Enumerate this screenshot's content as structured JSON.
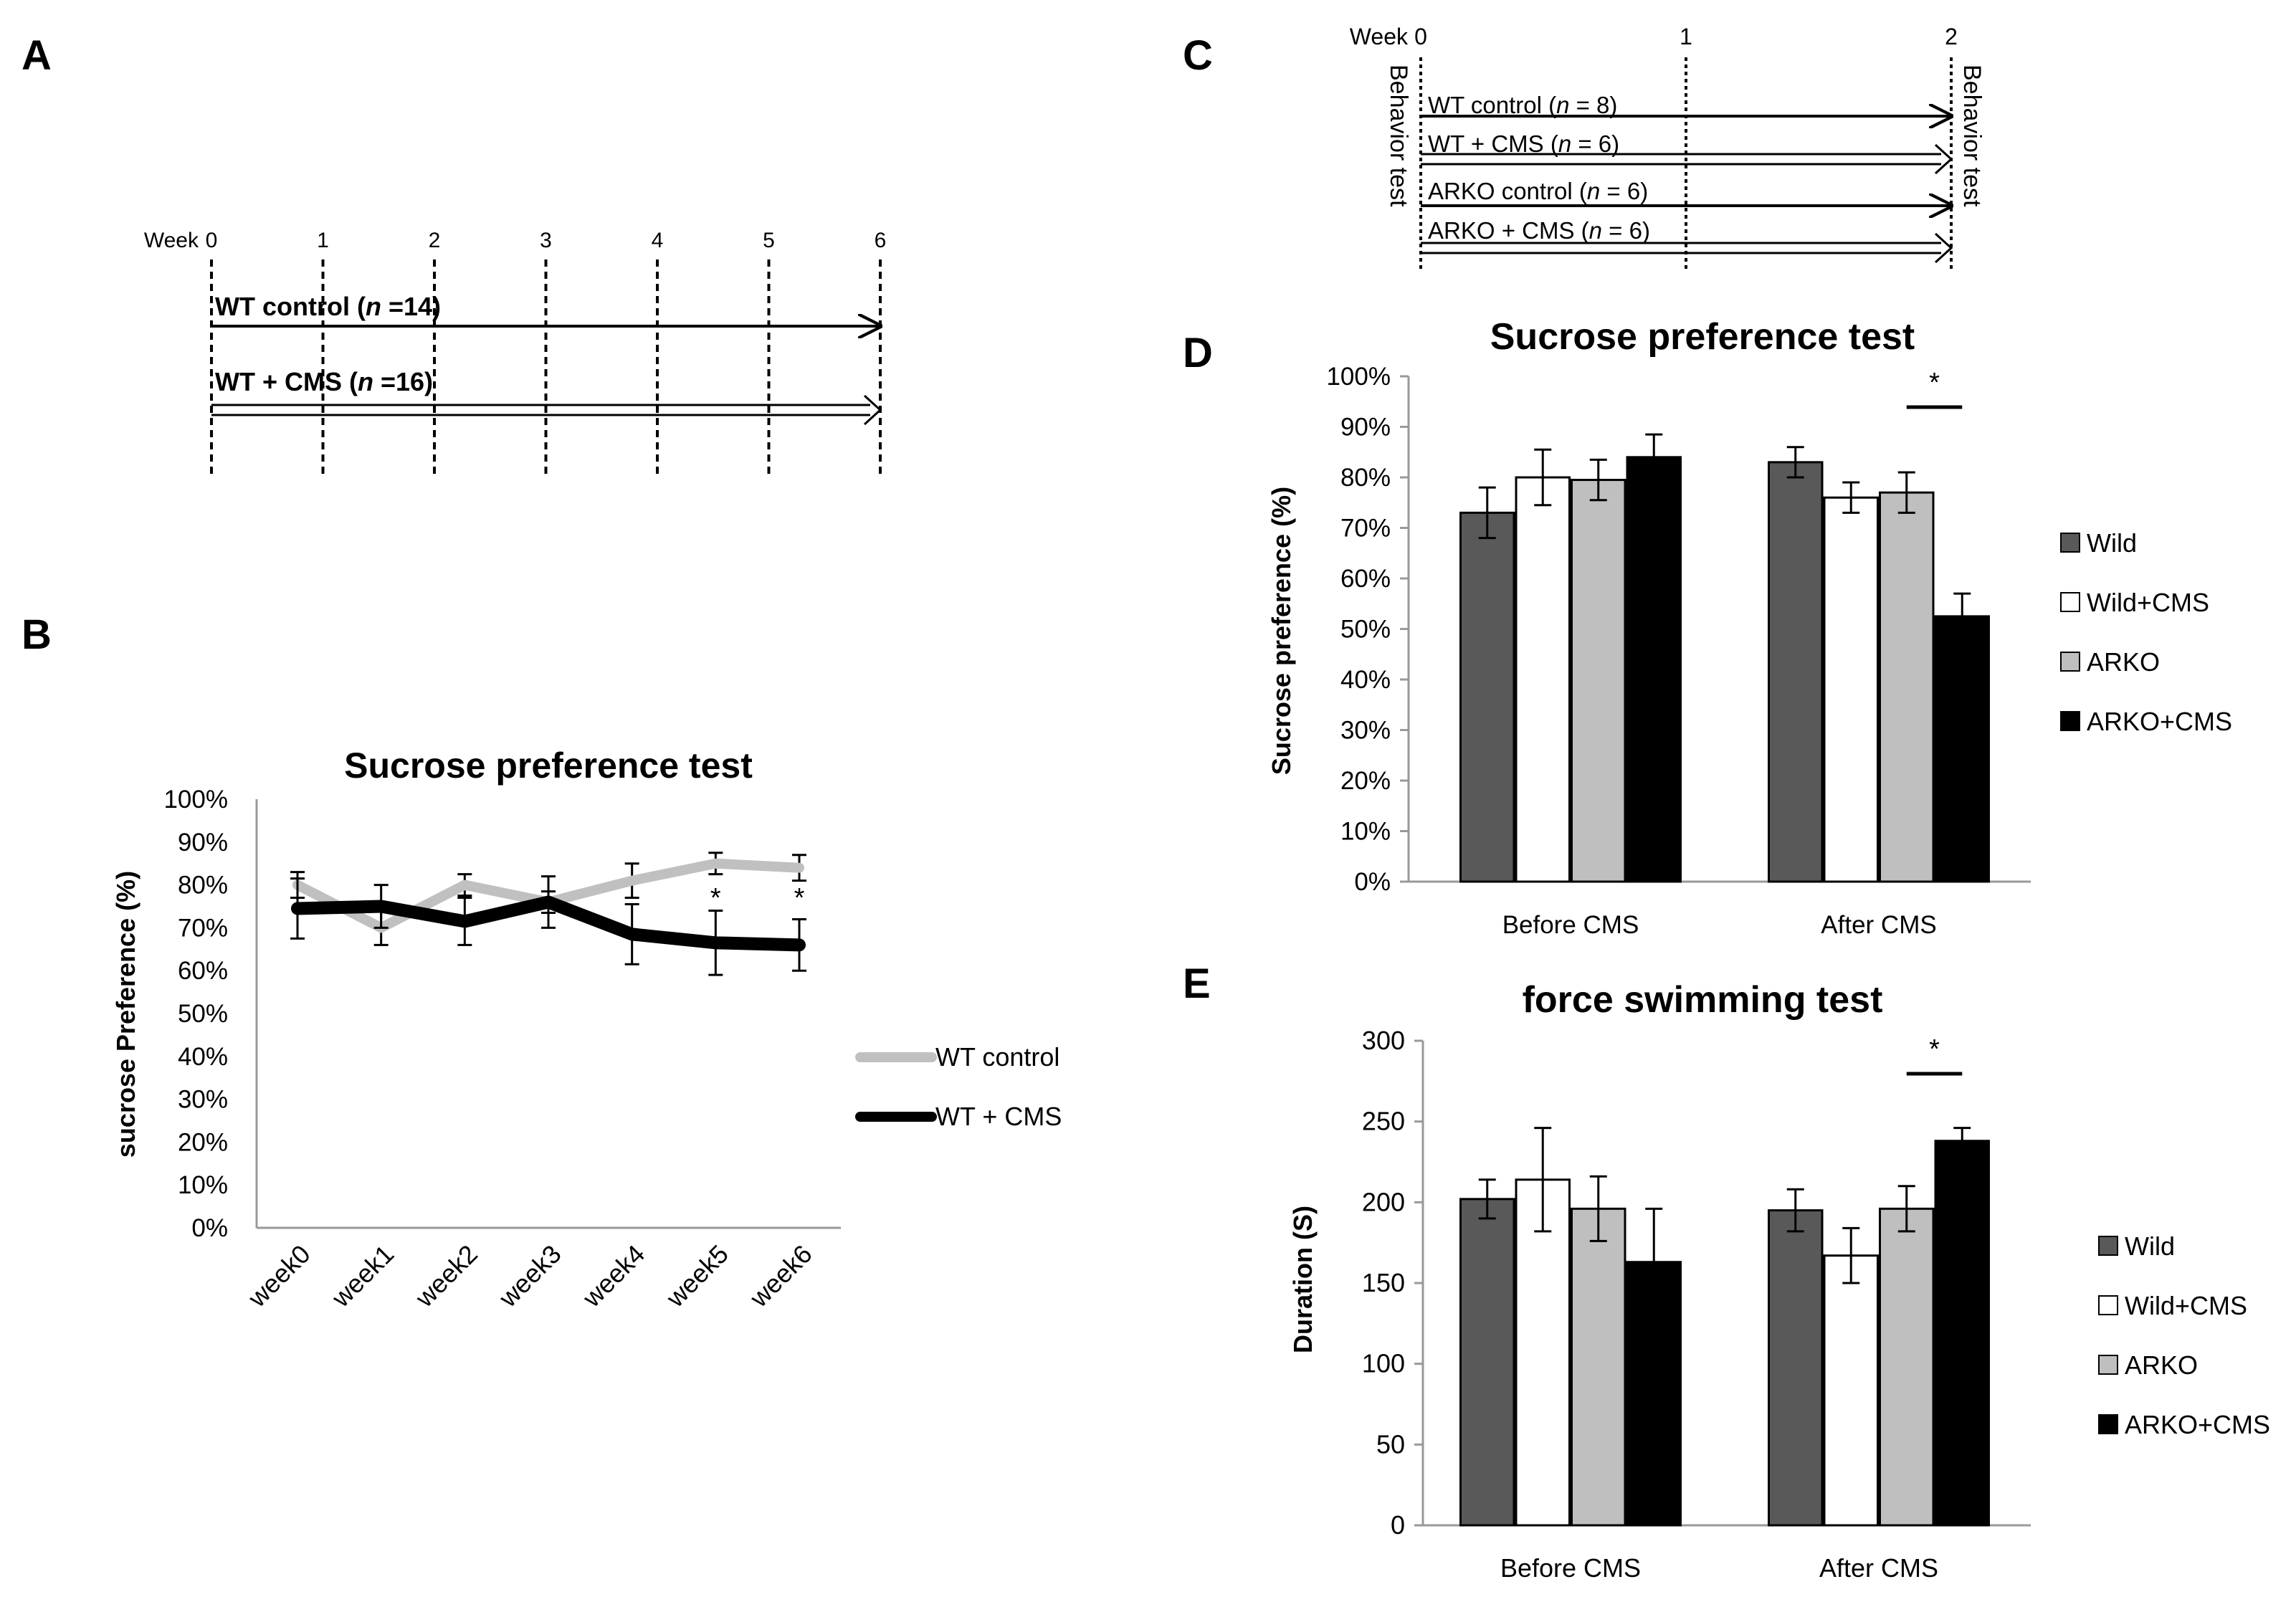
{
  "panels": {
    "A": {
      "letter": "A",
      "week_label": "Week",
      "week_ticks": [
        "0",
        "1",
        "2",
        "3",
        "4",
        "5",
        "6"
      ],
      "groups": [
        {
          "pre": "WT control (",
          "n": "n",
          "post": " =14)",
          "arrow": "single"
        },
        {
          "pre": "WT + CMS (",
          "n": "n",
          "post": " =16)",
          "arrow": "double"
        }
      ]
    },
    "C": {
      "letter": "C",
      "week_label": "Week",
      "week_ticks": [
        "0",
        "1",
        "2"
      ],
      "left_label": "Behavior test",
      "right_label": "Behavior test",
      "groups": [
        {
          "pre": "WT control (",
          "n": "n",
          "post": " = 8)",
          "arrow": "single"
        },
        {
          "pre": "WT + CMS (",
          "n": "n",
          "post": " = 6)",
          "arrow": "double"
        },
        {
          "pre": "ARKO control (",
          "n": "n",
          "post": " = 6)",
          "arrow": "single"
        },
        {
          "pre": "ARKO + CMS (",
          "n": "n",
          "post": " = 6)",
          "arrow": "double"
        }
      ]
    },
    "B": {
      "letter": "B"
    },
    "D": {
      "letter": "D"
    },
    "E": {
      "letter": "E"
    }
  },
  "chart_data": [
    {
      "id": "B",
      "type": "line",
      "title": "Sucrose preference test",
      "xlabel": "",
      "ylabel": "sucrose Preference (%)",
      "categories": [
        "week0",
        "week1",
        "week2",
        "week3",
        "week4",
        "week5",
        "week6"
      ],
      "ylim": [
        0,
        100
      ],
      "yticks": [
        "0%",
        "10%",
        "20%",
        "30%",
        "40%",
        "50%",
        "60%",
        "70%",
        "80%",
        "90%",
        "100%"
      ],
      "series": [
        {
          "name": "WT control",
          "color": "#c0c0c0",
          "values": [
            80,
            70,
            80,
            76,
            81,
            85,
            84
          ],
          "errors": [
            3,
            4,
            2.5,
            2.5,
            4,
            2.5,
            3
          ]
        },
        {
          "name": "WT + CMS",
          "color": "#000000",
          "values": [
            74.5,
            75,
            71.5,
            76,
            68.5,
            66.5,
            66
          ],
          "errors": [
            7,
            5,
            5.5,
            6,
            7,
            7.5,
            6
          ]
        }
      ],
      "annotations": [
        {
          "category": "week5",
          "text": "*"
        },
        {
          "category": "week6",
          "text": "*"
        }
      ],
      "legend": "right",
      "grid": false
    },
    {
      "id": "D",
      "type": "bar",
      "title": "Sucrose preference test",
      "xlabel": "",
      "ylabel": "Sucrose preference (%)",
      "categories": [
        "Before CMS",
        "After CMS"
      ],
      "ylim": [
        0,
        100
      ],
      "yticks": [
        "0%",
        "10%",
        "20%",
        "30%",
        "40%",
        "50%",
        "60%",
        "70%",
        "80%",
        "90%",
        "100%"
      ],
      "series": [
        {
          "name": "Wild",
          "color": "#595959",
          "values": [
            73,
            83
          ],
          "errors": [
            5,
            3
          ]
        },
        {
          "name": "Wild+CMS",
          "color": "#ffffff",
          "values": [
            80,
            76
          ],
          "errors": [
            5.5,
            3
          ]
        },
        {
          "name": "ARKO",
          "color": "#bfbfbf",
          "values": [
            79.5,
            77
          ],
          "errors": [
            4,
            4
          ]
        },
        {
          "name": "ARKO+CMS",
          "color": "#000000",
          "values": [
            84,
            52.5
          ],
          "errors": [
            4.5,
            4.5
          ]
        }
      ],
      "significance": {
        "category": "After CMS",
        "from_series": 2,
        "to_series": 3,
        "text": "*"
      },
      "legend": "right",
      "grid": false
    },
    {
      "id": "E",
      "type": "bar",
      "title": "force swimming test",
      "xlabel": "",
      "ylabel": "Duration (S)",
      "categories": [
        "Before CMS",
        "After CMS"
      ],
      "ylim": [
        0,
        300
      ],
      "yticks": [
        "0",
        "50",
        "100",
        "150",
        "200",
        "250",
        "300"
      ],
      "series": [
        {
          "name": "Wild",
          "color": "#595959",
          "values": [
            202,
            195
          ],
          "errors": [
            12,
            13
          ]
        },
        {
          "name": "Wild+CMS",
          "color": "#ffffff",
          "values": [
            214,
            167
          ],
          "errors": [
            32,
            17
          ]
        },
        {
          "name": "ARKO",
          "color": "#bfbfbf",
          "values": [
            196,
            196
          ],
          "errors": [
            20,
            14
          ]
        },
        {
          "name": "ARKO+CMS",
          "color": "#000000",
          "values": [
            163,
            238
          ],
          "errors": [
            33,
            8
          ]
        }
      ],
      "significance": {
        "category": "After CMS",
        "from_series": 2,
        "to_series": 3,
        "text": "*"
      },
      "legend": "right",
      "grid": false
    }
  ]
}
